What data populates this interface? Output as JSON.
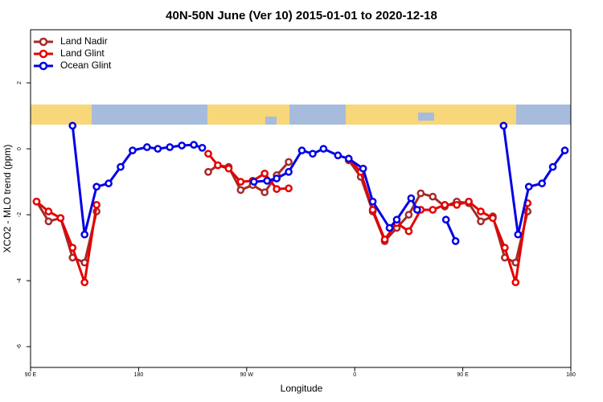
{
  "chart_data": {
    "type": "line",
    "title": "40N-50N June (Ver 10)   2015-01-01 to 2020-12-18",
    "x_label": "Longitude",
    "y_label": "XCO2 - MLO trend (ppm)",
    "xlim": [
      90,
      540
    ],
    "ylim": [
      -6.63,
      3.61
    ],
    "xticks": [
      {
        "value": 90,
        "label": "90 E"
      },
      {
        "value": 180,
        "label": "180"
      },
      {
        "value": 270,
        "label": "90 W"
      },
      {
        "value": 360,
        "label": "0"
      },
      {
        "value": 450,
        "label": "90 E"
      },
      {
        "value": 540,
        "label": "180"
      }
    ],
    "yticks": [
      -6,
      -4,
      -2,
      0,
      2
    ],
    "legend": "top-left",
    "series": [
      {
        "name": "Land Nadir",
        "color": "#a52a2a",
        "x": [
          95,
          105,
          115,
          125,
          135,
          145,
          null,
          238,
          246,
          255,
          265,
          275,
          285,
          295,
          305,
          null,
          355,
          365,
          375,
          385,
          395,
          405,
          415,
          425,
          435,
          445,
          455,
          465,
          475,
          485,
          494,
          504
        ],
        "values": [
          -1.6,
          -2.2,
          -2.1,
          -3.3,
          -3.45,
          -1.9,
          null,
          -0.7,
          -0.5,
          -0.55,
          -1.25,
          -1.1,
          -1.32,
          -0.8,
          -0.4,
          null,
          -0.35,
          -0.85,
          -1.9,
          -2.8,
          -2.4,
          -2.0,
          -1.35,
          -1.45,
          -1.75,
          -1.6,
          -1.65,
          -2.2,
          -2.05,
          -3.3,
          -3.45,
          -1.9
        ]
      },
      {
        "name": "Land Glint",
        "color": "#e60000",
        "x": [
          95,
          105,
          115,
          125,
          135,
          145,
          null,
          238,
          246,
          255,
          265,
          275,
          285,
          295,
          305,
          null,
          355,
          365,
          375,
          385,
          395,
          405,
          415,
          425,
          435,
          445,
          455,
          465,
          475,
          485,
          494,
          504
        ],
        "values": [
          -1.6,
          -1.9,
          -2.1,
          -3.0,
          -4.05,
          -1.7,
          null,
          -0.15,
          -0.5,
          -0.6,
          -1.0,
          -0.97,
          -0.75,
          -1.22,
          -1.2,
          null,
          -0.3,
          -0.7,
          -1.85,
          -2.75,
          -2.25,
          -2.5,
          -1.85,
          -1.85,
          -1.7,
          -1.7,
          -1.6,
          -1.9,
          -2.1,
          -3.0,
          -4.05,
          -1.65
        ]
      },
      {
        "name": "Ocean Glint",
        "color": "#0000e6",
        "x": [
          125,
          135,
          145,
          155,
          165,
          175,
          187,
          196,
          206,
          216,
          226,
          233,
          null,
          276,
          287,
          295,
          305,
          316,
          325,
          334,
          346,
          355,
          367,
          375,
          389,
          395,
          407,
          412,
          null,
          436,
          444,
          null,
          484,
          496,
          505,
          516,
          525,
          535
        ],
        "values": [
          0.7,
          -2.6,
          -1.15,
          -1.05,
          -0.55,
          -0.05,
          0.05,
          0.0,
          0.05,
          0.1,
          0.12,
          0.03,
          null,
          -1.0,
          -0.97,
          -0.9,
          -0.7,
          -0.05,
          -0.15,
          0.0,
          -0.2,
          -0.3,
          -0.6,
          -1.6,
          -2.4,
          -2.15,
          -1.5,
          -1.85,
          null,
          -2.15,
          -2.8,
          null,
          0.7,
          -2.6,
          -1.15,
          -1.05,
          -0.55,
          -0.05
        ]
      }
    ]
  }
}
